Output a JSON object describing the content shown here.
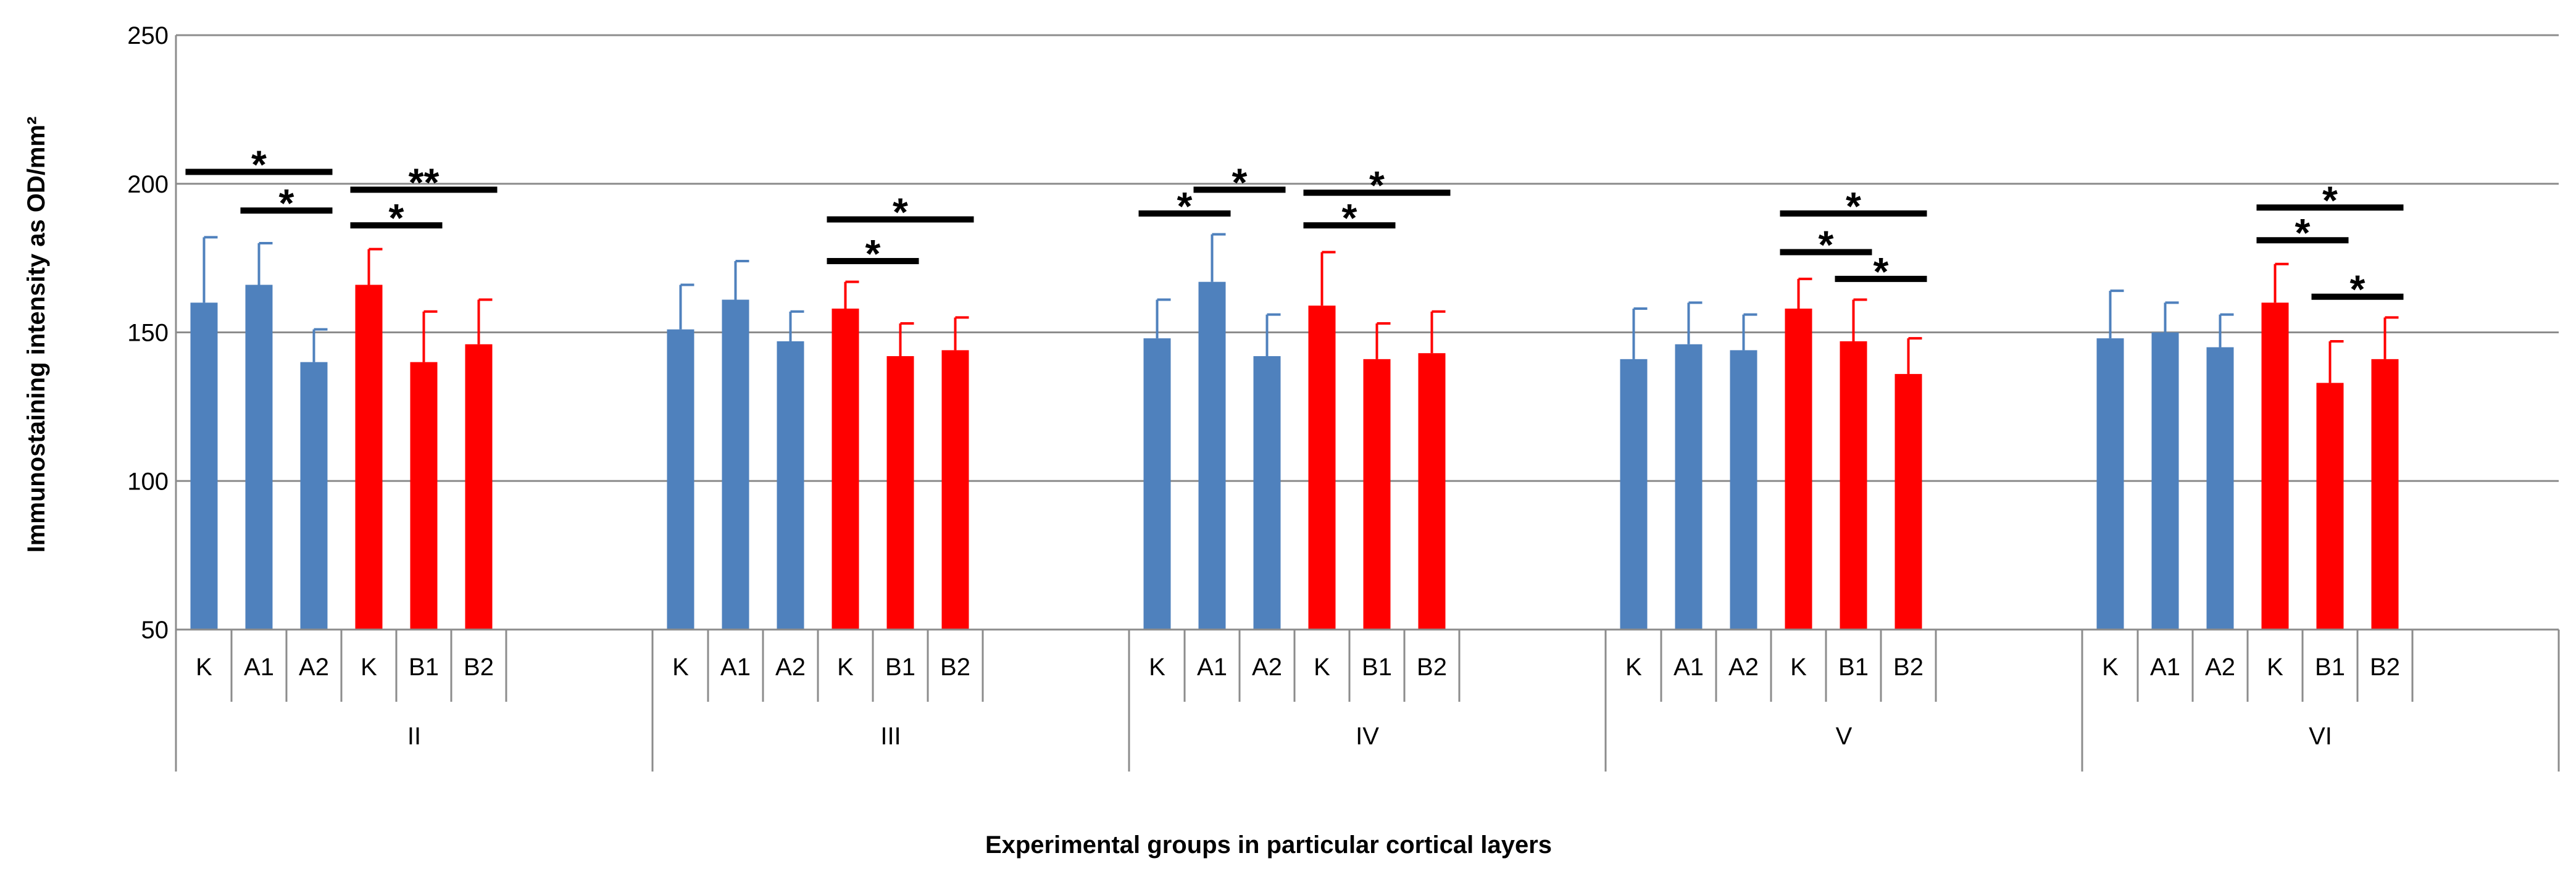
{
  "chart_data": {
    "type": "bar",
    "title": "",
    "ylabel": "Immunostaining intensity as OD/mm²",
    "xlabel": "Experimental groups in particular cortical layers",
    "ylim": [
      50,
      250
    ],
    "yticks": [
      50,
      100,
      150,
      200,
      250
    ],
    "grid": true,
    "colors": {
      "A": "#4f81bd",
      "B": "#ff0000"
    },
    "categories": [
      "K",
      "A1",
      "A2",
      "K",
      "B1",
      "B2"
    ],
    "bar_colors": [
      "A",
      "A",
      "A",
      "B",
      "B",
      "B"
    ],
    "groups": [
      {
        "label": "II",
        "values": [
          160,
          166,
          140,
          166,
          140,
          146
        ],
        "errors": [
          22,
          14,
          11,
          12,
          17,
          15
        ]
      },
      {
        "label": "III",
        "values": [
          151,
          161,
          147,
          158,
          142,
          144
        ],
        "errors": [
          15,
          13,
          10,
          9,
          11,
          11
        ]
      },
      {
        "label": "IV",
        "values": [
          148,
          167,
          142,
          159,
          141,
          143
        ],
        "errors": [
          13,
          16,
          14,
          18,
          12,
          14
        ]
      },
      {
        "label": "V",
        "values": [
          141,
          146,
          144,
          158,
          147,
          136
        ],
        "errors": [
          17,
          14,
          12,
          10,
          14,
          12
        ]
      },
      {
        "label": "VI",
        "values": [
          148,
          150,
          145,
          160,
          133,
          141
        ],
        "errors": [
          16,
          10,
          11,
          13,
          14,
          14
        ]
      }
    ],
    "significance": [
      {
        "group": 0,
        "from": 0,
        "to": 2,
        "y": 204,
        "label": "*"
      },
      {
        "group": 0,
        "from": 1,
        "to": 2,
        "y": 191,
        "label": "*"
      },
      {
        "group": 0,
        "from": 3,
        "to": 5,
        "y": 198,
        "label": "**"
      },
      {
        "group": 0,
        "from": 3,
        "to": 4,
        "y": 186,
        "label": "*"
      },
      {
        "group": 1,
        "from": 3,
        "to": 5,
        "y": 188,
        "label": "*"
      },
      {
        "group": 1,
        "from": 3,
        "to": 4,
        "y": 174,
        "label": "*"
      },
      {
        "group": 2,
        "from": 0,
        "to": 1,
        "y": 190,
        "label": "*"
      },
      {
        "group": 2,
        "from": 1,
        "to": 2,
        "y": 198,
        "label": "*"
      },
      {
        "group": 2,
        "from": 3,
        "to": 5,
        "y": 197,
        "label": "*"
      },
      {
        "group": 2,
        "from": 3,
        "to": 4,
        "y": 186,
        "label": "*"
      },
      {
        "group": 3,
        "from": 3,
        "to": 5,
        "y": 190,
        "label": "*"
      },
      {
        "group": 3,
        "from": 3,
        "to": 4,
        "y": 177,
        "label": "*"
      },
      {
        "group": 3,
        "from": 4,
        "to": 5,
        "y": 168,
        "label": "*"
      },
      {
        "group": 4,
        "from": 3,
        "to": 5,
        "y": 192,
        "label": "*"
      },
      {
        "group": 4,
        "from": 3,
        "to": 4,
        "y": 181,
        "label": "*"
      },
      {
        "group": 4,
        "from": 4,
        "to": 5,
        "y": 162,
        "label": "*"
      }
    ]
  }
}
